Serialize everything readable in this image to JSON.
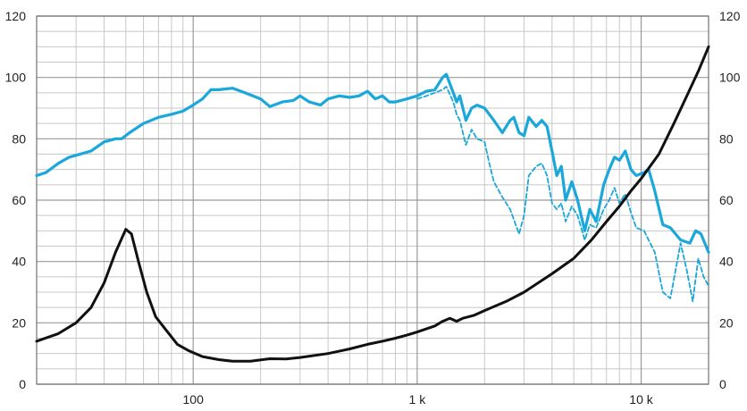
{
  "chart_data": {
    "type": "line",
    "title": "",
    "xlabel": "",
    "ylabel": "",
    "x_scale": "log",
    "xlim": [
      20,
      20000
    ],
    "ylim": [
      0,
      120
    ],
    "grid": true,
    "legend": "none",
    "x_ticks": [
      {
        "value": 100,
        "label": "100"
      },
      {
        "value": 1000,
        "label": "1 k"
      },
      {
        "value": 10000,
        "label": "10 k"
      }
    ],
    "y_ticks": [
      0,
      20,
      40,
      60,
      80,
      100,
      120
    ],
    "y_tick_labels": [
      "0",
      "20",
      "40",
      "60",
      "80",
      "100",
      "120"
    ],
    "series": [
      {
        "color": "#1aa7d9",
        "style": "solid",
        "points": [
          [
            20,
            68
          ],
          [
            22,
            69
          ],
          [
            25,
            72
          ],
          [
            28,
            74
          ],
          [
            35,
            76
          ],
          [
            40,
            79
          ],
          [
            45,
            80
          ],
          [
            48,
            80
          ],
          [
            52,
            82
          ],
          [
            60,
            85
          ],
          [
            70,
            87
          ],
          [
            80,
            88
          ],
          [
            90,
            89
          ],
          [
            100,
            91
          ],
          [
            110,
            93
          ],
          [
            120,
            96
          ],
          [
            130,
            96
          ],
          [
            150,
            96.5
          ],
          [
            170,
            95
          ],
          [
            200,
            93
          ],
          [
            220,
            90.5
          ],
          [
            250,
            92
          ],
          [
            280,
            92.5
          ],
          [
            300,
            94
          ],
          [
            330,
            92
          ],
          [
            370,
            91
          ],
          [
            400,
            93
          ],
          [
            450,
            94
          ],
          [
            500,
            93.5
          ],
          [
            550,
            94
          ],
          [
            600,
            95.5
          ],
          [
            650,
            93
          ],
          [
            700,
            94
          ],
          [
            750,
            92
          ],
          [
            800,
            92
          ],
          [
            900,
            93
          ],
          [
            1000,
            94
          ],
          [
            1100,
            95.5
          ],
          [
            1200,
            96
          ],
          [
            1300,
            100
          ],
          [
            1350,
            101
          ],
          [
            1450,
            95
          ],
          [
            1500,
            92
          ],
          [
            1550,
            94
          ],
          [
            1650,
            86
          ],
          [
            1750,
            90
          ],
          [
            1850,
            91
          ],
          [
            2000,
            90
          ],
          [
            2200,
            86
          ],
          [
            2400,
            82
          ],
          [
            2600,
            86
          ],
          [
            2700,
            87
          ],
          [
            2850,
            82
          ],
          [
            3000,
            81
          ],
          [
            3150,
            87
          ],
          [
            3400,
            84
          ],
          [
            3600,
            86
          ],
          [
            3800,
            84
          ],
          [
            4000,
            76
          ],
          [
            4200,
            68
          ],
          [
            4400,
            71
          ],
          [
            4600,
            60
          ],
          [
            4900,
            66
          ],
          [
            5200,
            60
          ],
          [
            5600,
            50
          ],
          [
            5900,
            57
          ],
          [
            6300,
            53
          ],
          [
            6800,
            65
          ],
          [
            7200,
            70
          ],
          [
            7600,
            74
          ],
          [
            8000,
            73
          ],
          [
            8500,
            76
          ],
          [
            9000,
            70
          ],
          [
            9500,
            68
          ],
          [
            10300,
            69
          ],
          [
            10800,
            70
          ],
          [
            11500,
            63
          ],
          [
            12500,
            52
          ],
          [
            13500,
            51
          ],
          [
            15000,
            47
          ],
          [
            16500,
            46
          ],
          [
            17500,
            50
          ],
          [
            18500,
            49
          ],
          [
            20000,
            43
          ]
        ]
      },
      {
        "color": "#1aa7d9",
        "style": "dashed",
        "points": [
          [
            1000,
            93
          ],
          [
            1100,
            94
          ],
          [
            1200,
            95
          ],
          [
            1300,
            96
          ],
          [
            1350,
            97
          ],
          [
            1450,
            92
          ],
          [
            1500,
            88
          ],
          [
            1550,
            86
          ],
          [
            1650,
            78
          ],
          [
            1750,
            83
          ],
          [
            1850,
            80
          ],
          [
            2000,
            79
          ],
          [
            2100,
            72
          ],
          [
            2200,
            66
          ],
          [
            2400,
            61
          ],
          [
            2600,
            57
          ],
          [
            2850,
            49
          ],
          [
            3000,
            55
          ],
          [
            3150,
            68
          ],
          [
            3400,
            71
          ],
          [
            3600,
            72
          ],
          [
            3800,
            68
          ],
          [
            4000,
            59
          ],
          [
            4200,
            57
          ],
          [
            4400,
            59
          ],
          [
            4600,
            53
          ],
          [
            4900,
            58
          ],
          [
            5200,
            55
          ],
          [
            5600,
            47
          ],
          [
            5900,
            52
          ],
          [
            6300,
            51
          ],
          [
            6800,
            57
          ],
          [
            7200,
            60
          ],
          [
            7600,
            64
          ],
          [
            8000,
            59
          ],
          [
            8500,
            62
          ],
          [
            9000,
            56
          ],
          [
            9500,
            51
          ],
          [
            10300,
            50
          ],
          [
            10800,
            47
          ],
          [
            11500,
            43
          ],
          [
            12500,
            30
          ],
          [
            13500,
            28
          ],
          [
            15000,
            46
          ],
          [
            16000,
            37
          ],
          [
            17000,
            27
          ],
          [
            18000,
            41
          ],
          [
            19000,
            35
          ],
          [
            20000,
            32
          ]
        ]
      },
      {
        "color": "#111111",
        "style": "solid",
        "points": [
          [
            20,
            14
          ],
          [
            25,
            16.5
          ],
          [
            30,
            20
          ],
          [
            35,
            25
          ],
          [
            40,
            33
          ],
          [
            45,
            43
          ],
          [
            50,
            50.5
          ],
          [
            53,
            49
          ],
          [
            57,
            40
          ],
          [
            62,
            30
          ],
          [
            68,
            22
          ],
          [
            75,
            18
          ],
          [
            85,
            13
          ],
          [
            95,
            11
          ],
          [
            110,
            9
          ],
          [
            130,
            8
          ],
          [
            150,
            7.5
          ],
          [
            180,
            7.5
          ],
          [
            220,
            8.3
          ],
          [
            260,
            8.2
          ],
          [
            300,
            8.7
          ],
          [
            400,
            10
          ],
          [
            500,
            11.5
          ],
          [
            600,
            13
          ],
          [
            700,
            14
          ],
          [
            800,
            15
          ],
          [
            900,
            16
          ],
          [
            1000,
            17
          ],
          [
            1200,
            19
          ],
          [
            1300,
            20.5
          ],
          [
            1400,
            21.5
          ],
          [
            1500,
            20.5
          ],
          [
            1600,
            21.5
          ],
          [
            1800,
            22.5
          ],
          [
            2000,
            24
          ],
          [
            2500,
            27
          ],
          [
            3000,
            30
          ],
          [
            4000,
            36
          ],
          [
            5000,
            41
          ],
          [
            6000,
            47
          ],
          [
            7000,
            53
          ],
          [
            8000,
            58
          ],
          [
            9000,
            63
          ],
          [
            10000,
            67
          ],
          [
            12000,
            75
          ],
          [
            14000,
            85
          ],
          [
            16000,
            94
          ],
          [
            18000,
            102
          ],
          [
            20000,
            110
          ]
        ]
      }
    ]
  }
}
